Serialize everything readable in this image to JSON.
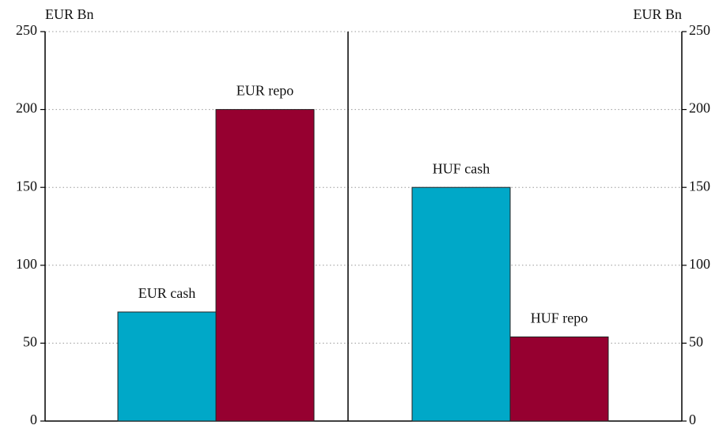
{
  "chart_data": {
    "type": "bar",
    "y_label": "EUR Bn",
    "y2_label": "EUR Bn",
    "categories": [
      "EUR cash",
      "EUR repo",
      "HUF cash",
      "HUF repo"
    ],
    "values": [
      70,
      200,
      150,
      54
    ],
    "colors": [
      "#00a8c8",
      "#960030",
      "#00a8c8",
      "#960030"
    ],
    "ylim": [
      0,
      250
    ],
    "yticks": [
      0,
      50,
      100,
      150,
      200,
      250
    ],
    "y2lim": [
      0,
      250
    ],
    "y2ticks": [
      0,
      50,
      100,
      150,
      200,
      250
    ],
    "grid": true
  }
}
